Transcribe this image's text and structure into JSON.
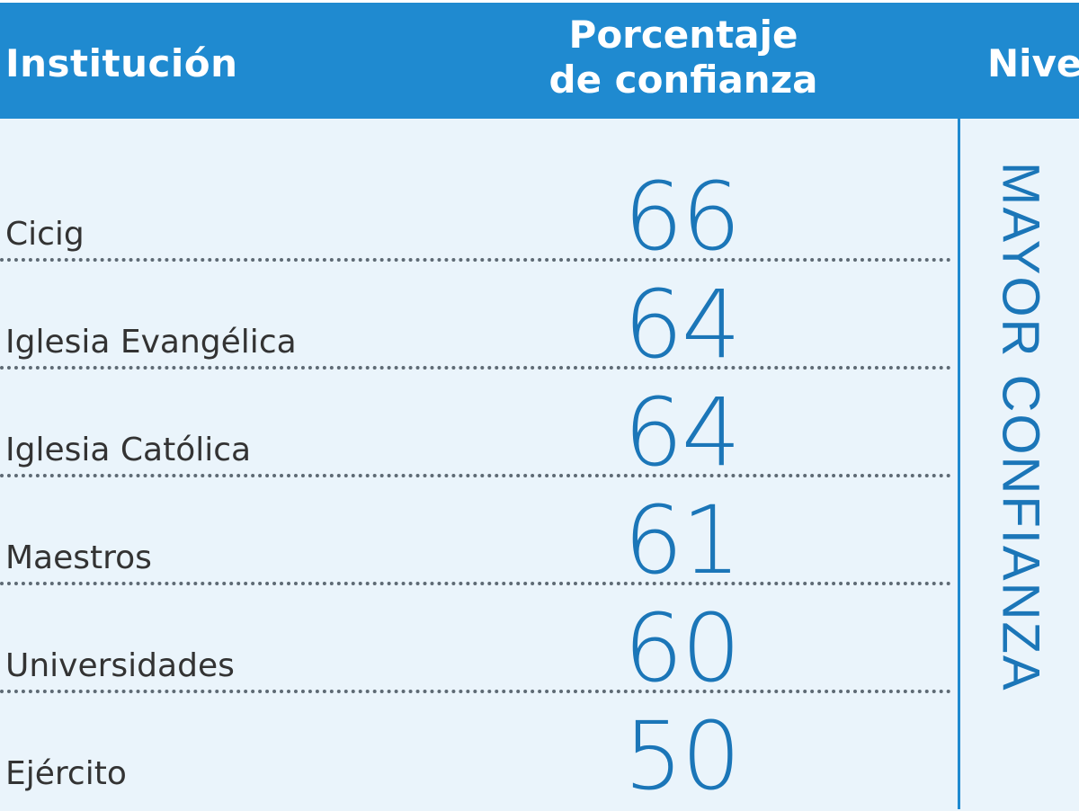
{
  "header": {
    "institucion": "Institución",
    "porcentaje_line1": "Porcentaje",
    "porcentaje_line2": "de confianza",
    "nivel": "Nive"
  },
  "side_label": "MAYOR CONFIANZA",
  "chart_data": {
    "type": "table",
    "columns": [
      "Institución",
      "Porcentaje de confianza",
      "Nive"
    ],
    "rows": [
      {
        "institucion": "Cicig",
        "valor": "66"
      },
      {
        "institucion": "Iglesia Evangélica",
        "valor": "64"
      },
      {
        "institucion": "Iglesia Católica",
        "valor": "64"
      },
      {
        "institucion": "Maestros",
        "valor": "61"
      },
      {
        "institucion": "Universidades",
        "valor": "60"
      },
      {
        "institucion": "Ejército",
        "valor": "50"
      }
    ]
  },
  "colors": {
    "header_bg": "#1f8ad0",
    "body_bg": "#eaf4fb",
    "value_text": "#1b76b8"
  }
}
